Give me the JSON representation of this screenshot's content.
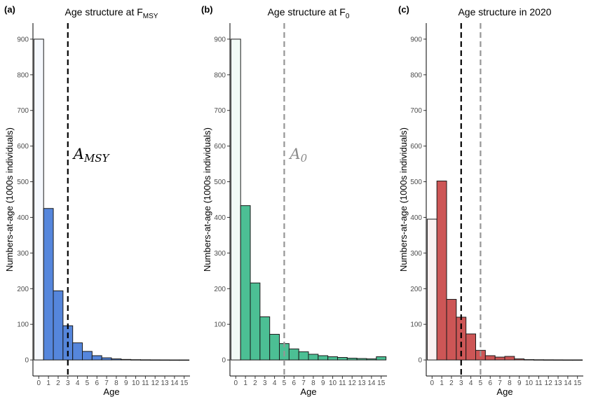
{
  "chart_data": [
    {
      "type": "bar",
      "panel_label": "(a)",
      "title": "Age structure at F",
      "title_sub": "MSY",
      "xlabel": "Age",
      "ylabel": "Numbers-at-age (1000s individuals)",
      "categories": [
        "0",
        "1",
        "2",
        "3",
        "4",
        "5",
        "6",
        "7",
        "8",
        "9",
        "10",
        "11",
        "12",
        "13",
        "14",
        "15"
      ],
      "values": [
        900,
        425,
        194,
        96,
        48,
        24,
        12,
        6,
        3,
        1.5,
        0.8,
        0.5,
        0.3,
        0.2,
        0.1,
        0.1
      ],
      "ylim": [
        -45,
        945
      ],
      "yticks": [
        0,
        100,
        200,
        300,
        400,
        500,
        600,
        700,
        800,
        900
      ],
      "base_color": "#5586dc",
      "first_bar_color": "#f5f8fd",
      "vlines": [
        {
          "x": 3,
          "color": "#000000"
        }
      ],
      "annotation": {
        "label": "A",
        "sub": "MSY",
        "color": "#000000"
      }
    },
    {
      "type": "bar",
      "panel_label": "(b)",
      "title": "Age structure at F",
      "title_sub": "0",
      "xlabel": "Age",
      "ylabel": "Numbers-at-age (1000s individuals)",
      "categories": [
        "0",
        "1",
        "2",
        "3",
        "4",
        "5",
        "6",
        "7",
        "8",
        "9",
        "10",
        "11",
        "12",
        "13",
        "14",
        "15"
      ],
      "values": [
        900,
        433,
        216,
        121,
        72,
        46,
        31,
        23,
        16,
        12,
        9,
        7,
        5,
        4,
        3,
        9
      ],
      "ylim": [
        -45,
        945
      ],
      "yticks": [
        0,
        100,
        200,
        300,
        400,
        500,
        600,
        700,
        800,
        900
      ],
      "base_color": "#4cbf94",
      "first_bar_color": "#f1faf6",
      "vlines": [
        {
          "x": 5,
          "color": "#969696"
        }
      ],
      "annotation": {
        "label": "A",
        "sub": "0",
        "color": "#8a8a8a"
      }
    },
    {
      "type": "bar",
      "panel_label": "(c)",
      "title": "Age structure in 2020",
      "title_sub": "",
      "xlabel": "Age",
      "ylabel": "Numbers-at-age (1000s individuals)",
      "categories": [
        "0",
        "1",
        "2",
        "3",
        "4",
        "5",
        "6",
        "7",
        "8",
        "9",
        "10",
        "11",
        "12",
        "13",
        "14",
        "15"
      ],
      "values": [
        395,
        502,
        170,
        120,
        73,
        27,
        12,
        8,
        10,
        3,
        1,
        0.6,
        0.4,
        0.3,
        0.2,
        0.2
      ],
      "ylim": [
        -45,
        945
      ],
      "yticks": [
        0,
        100,
        200,
        300,
        400,
        500,
        600,
        700,
        800,
        900
      ],
      "base_color": "#cd5656",
      "first_bar_color": "#fbf1f1",
      "vlines": [
        {
          "x": 3,
          "color": "#000000"
        },
        {
          "x": 5,
          "color": "#969696"
        }
      ],
      "annotation": null
    }
  ]
}
